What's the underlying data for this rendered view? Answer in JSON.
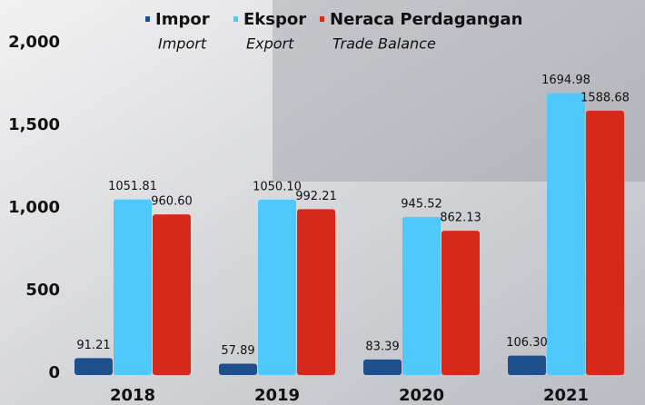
{
  "chart_data": {
    "type": "bar",
    "categories": [
      "2018",
      "2019",
      "2020",
      "2021"
    ],
    "series": [
      {
        "name": "Impor",
        "name_en": "Import",
        "color": "#1f4e8c",
        "values": [
          91.21,
          57.89,
          83.39,
          106.3
        ],
        "value_labels": [
          "91.21",
          "57.89",
          "83.39",
          "106.30"
        ]
      },
      {
        "name": "Ekspor",
        "name_en": "Export",
        "color": "#4fc9fb",
        "values": [
          1051.81,
          1050.1,
          945.52,
          1694.98
        ],
        "value_labels": [
          "1051.81",
          "1050.10",
          "945.52",
          "1694.98"
        ]
      },
      {
        "name": "Neraca Perdagangan",
        "name_en": "Trade Balance",
        "color": "#d7281c",
        "values": [
          960.6,
          992.21,
          862.13,
          1588.68
        ],
        "value_labels": [
          "960.60",
          "992.21",
          "862.13",
          "1588.68"
        ]
      }
    ],
    "ylim": [
      0,
      2000
    ],
    "yticks": [
      0,
      500,
      {
        "value": 1000,
        "label": "1,000"
      },
      {
        "value": 1500,
        "label": "1,500"
      },
      {
        "value": 2000,
        "label": "2,000"
      }
    ],
    "legend": "top"
  }
}
